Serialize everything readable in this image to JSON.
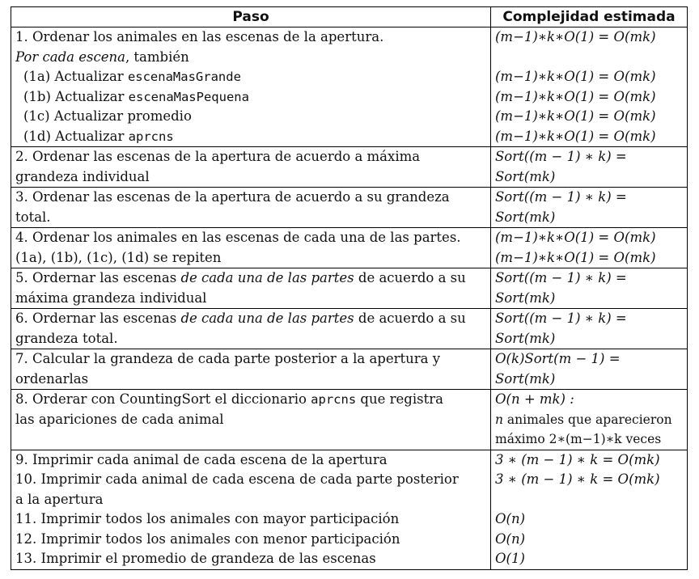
{
  "headers": {
    "paso": "Paso",
    "complejidad": "Complejidad estimada"
  },
  "rows": {
    "r1": {
      "l1": "1. Ordenar los animales en las escenas de la apertura.",
      "l2_it": "Por cada escena",
      "l2_rest": ", también",
      "l3_pre": "(1a) Actualizar ",
      "l3_code": "escenaMasGrande",
      "l4_pre": "(1b) Actualizar ",
      "l4_code": "escenaMasPequena",
      "l5": "(1c) Actualizar promedio",
      "l6_pre": "(1d) Actualizar ",
      "l6_code": "aprcns",
      "c": "(m−1)∗k∗O(1) = O(mk)"
    },
    "r2": {
      "l1": "2.  Ordenar las escenas de la apertura de acuerdo a máxima",
      "l2": "grandeza individual",
      "c1": "Sort((m − 1) ∗ k)   =",
      "c2": "Sort(mk)"
    },
    "r3": {
      "l1": "3.  Ordenar las escenas de la apertura de acuerdo a su grandeza",
      "l2": "total.",
      "c1": "Sort((m − 1) ∗ k)   =",
      "c2": "Sort(mk)"
    },
    "r4": {
      "l1": "4. Ordenar los animales en las escenas de cada una de las partes.",
      "l2": "(1a), (1b), (1c), (1d) se repiten",
      "c1": "(m−1)∗k∗O(1) = O(mk)",
      "c2": "(m−1)∗k∗O(1) = O(mk)"
    },
    "r5": {
      "l1_pre": "5. Ordernar las escenas ",
      "l1_it": "de cada una de las partes",
      "l1_post": " de acuerdo a su",
      "l2": "máxima grandeza individual",
      "c1": "Sort((m − 1) ∗ k)   =",
      "c2": "Sort(mk)"
    },
    "r6": {
      "l1_pre": "6. Ordernar las escenas ",
      "l1_it": "de cada una de las partes",
      "l1_post": " de acuerdo a su",
      "l2": "grandeza total.",
      "c1": "Sort((m − 1) ∗ k)   =",
      "c2": "Sort(mk)"
    },
    "r7": {
      "l1": "7.  Calcular la grandeza de cada parte posterior a la apertura y",
      "l2": "ordenarlas",
      "c1": "O(k)Sort(m  −  1)      =",
      "c2": "Sort(mk)"
    },
    "r8": {
      "l1_pre": "8.  Orderar con CountingSort el diccionario ",
      "l1_code": "aprcns",
      "l1_post": " que registra",
      "l2": "las apariciones de cada animal",
      "c1": "O(n + mk) :",
      "c2_it": "n",
      "c2_rest": " animales que aparecieron",
      "c3": "máximo 2∗(m−1)∗k veces"
    },
    "r9": {
      "l1": "9.  Imprimir cada animal de cada escena de la apertura",
      "l2": "10.  Imprimir cada animal de cada escena de cada parte posterior",
      "l3": "a la apertura",
      "l4": "11.  Imprimir todos los animales con mayor participación",
      "l5": "12.  Imprimir todos los animales con menor participación",
      "l6": "13.  Imprimir el promedio de grandeza de las escenas",
      "c1": "3 ∗ (m − 1) ∗ k = O(mk)",
      "c2": "3 ∗ (m − 1) ∗ k = O(mk)",
      "c4": "O(n)",
      "c5": "O(n)",
      "c6": "O(1)"
    }
  }
}
